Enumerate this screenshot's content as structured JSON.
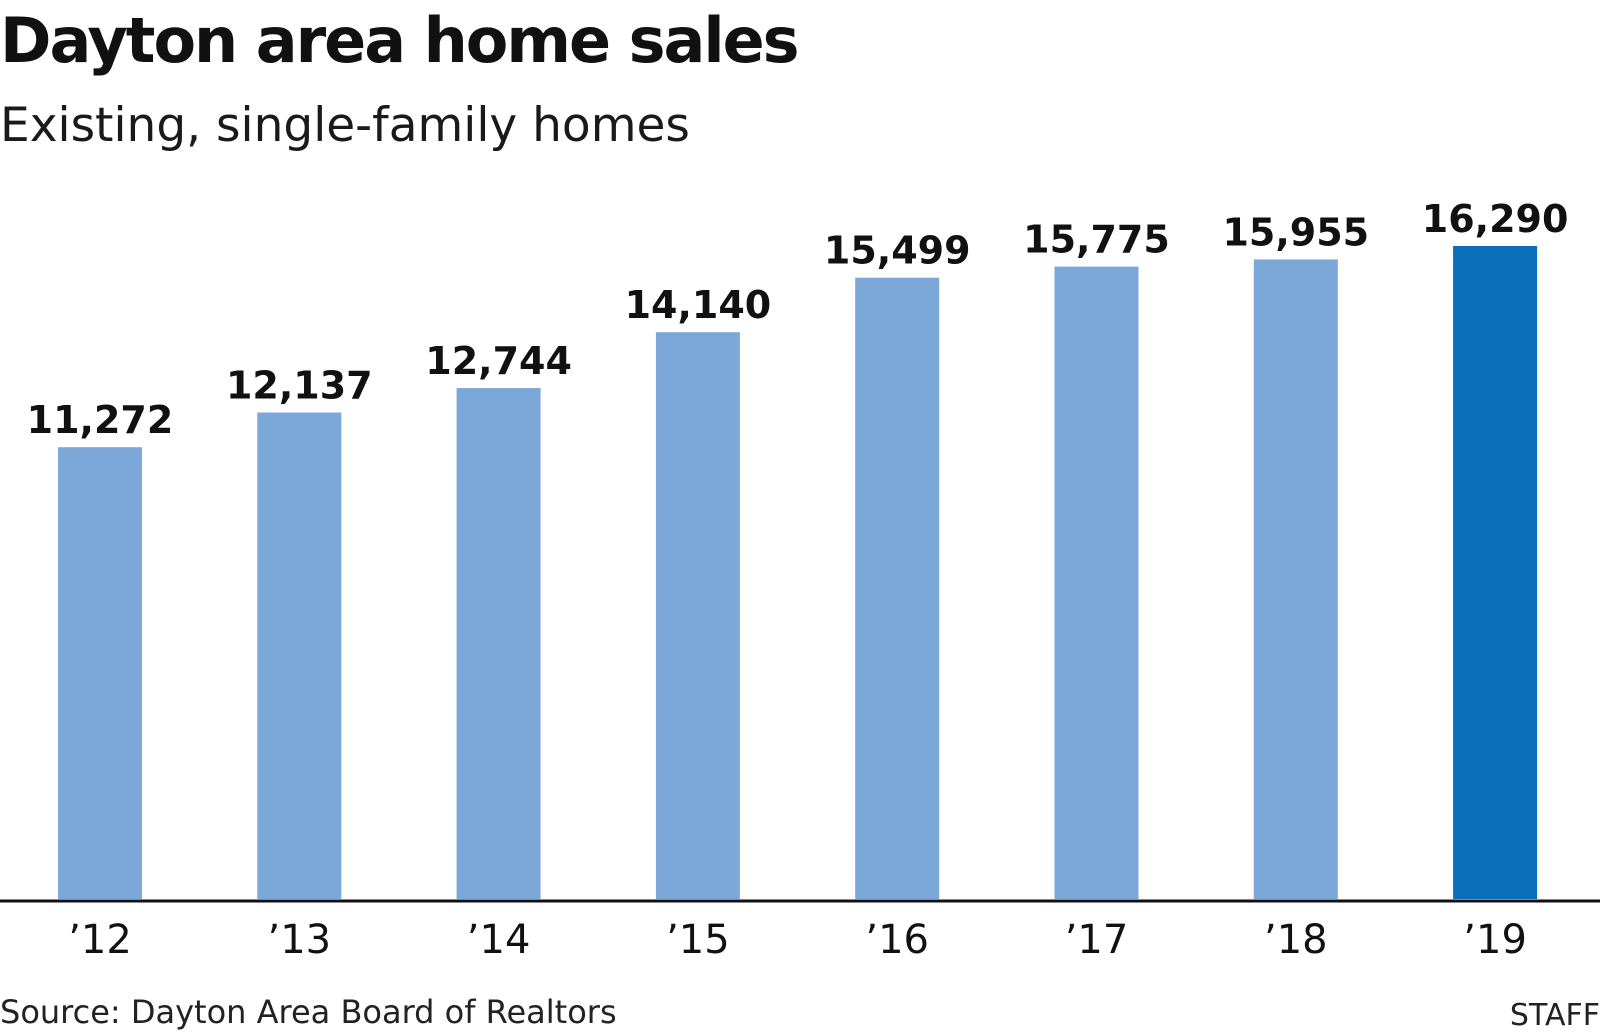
{
  "chart_data": {
    "type": "bar",
    "title": "Dayton area home sales",
    "subtitle": "Existing, single-family homes",
    "categories": [
      "’12",
      "’13",
      "’14",
      "’15",
      "’16",
      "’17",
      "’18",
      "’19"
    ],
    "values": [
      11272,
      12137,
      12744,
      14140,
      15499,
      15775,
      15955,
      16290
    ],
    "value_labels": [
      "11,272",
      "12,137",
      "12,744",
      "14,140",
      "15,499",
      "15,775",
      "15,955",
      "16,290"
    ],
    "ylim": [
      0,
      16290
    ],
    "grid": false,
    "legend": "none",
    "colors": {
      "default_bar": "#7ba7d9",
      "highlight_bar": "#0a6fba",
      "axis": "#111111"
    },
    "highlight_index": 7
  },
  "footer": {
    "source": "Source: Dayton Area Board of Realtors",
    "credit": "STAFF"
  }
}
